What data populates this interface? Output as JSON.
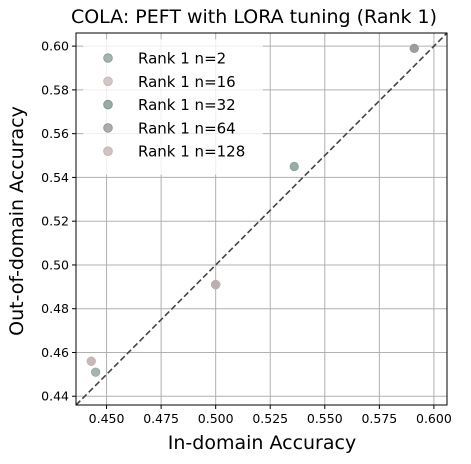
{
  "chart_data": {
    "type": "scatter",
    "title": "COLA: PEFT with LORA tuning (Rank 1)",
    "xlabel": "In-domain Accuracy",
    "ylabel": "Out-of-domain Accuracy",
    "xlim": [
      0.436,
      0.606
    ],
    "ylim": [
      0.436,
      0.606
    ],
    "xticks": [
      "0.450",
      "0.475",
      "0.500",
      "0.525",
      "0.550",
      "0.575",
      "0.600"
    ],
    "yticks": [
      "0.44",
      "0.46",
      "0.48",
      "0.50",
      "0.52",
      "0.54",
      "0.56",
      "0.58",
      "0.60"
    ],
    "xtick_values": [
      0.45,
      0.475,
      0.5,
      0.525,
      0.55,
      0.575,
      0.6
    ],
    "ytick_values": [
      0.44,
      0.46,
      0.48,
      0.5,
      0.52,
      0.54,
      0.56,
      0.58,
      0.6
    ],
    "grid": true,
    "legend_position": "top-left",
    "diagonal": "y = x dashed reference line",
    "series": [
      {
        "name": "Rank 1 n=2",
        "color": "#8fa19a",
        "points": [
          [
            0.445,
            0.451
          ],
          [
            0.591,
            0.599
          ]
        ]
      },
      {
        "name": "Rank 1 n=16",
        "color": "#c9b8b8",
        "points": [
          [
            0.443,
            0.456
          ],
          [
            0.5,
            0.491
          ]
        ]
      },
      {
        "name": "Rank 1 n=32",
        "color": "#7f9990",
        "points": [
          [
            0.536,
            0.545
          ],
          [
            0.5,
            0.491
          ]
        ]
      },
      {
        "name": "Rank 1 n=64",
        "color": "#999999",
        "points": [
          [
            0.591,
            0.599
          ],
          [
            0.5,
            0.491
          ]
        ]
      },
      {
        "name": "Rank 1 n=128",
        "color": "#c4b4b4",
        "points": [
          [
            0.443,
            0.456
          ],
          [
            0.5,
            0.491
          ]
        ]
      }
    ]
  }
}
